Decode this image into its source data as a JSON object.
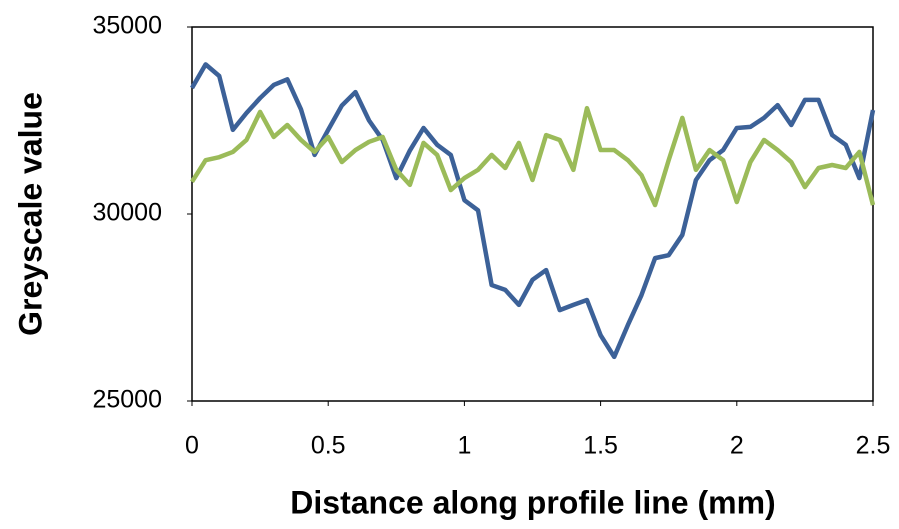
{
  "chart_data": {
    "type": "line",
    "x_label": "Distance along profile line (mm)",
    "y_label": "Greyscale value",
    "x": [
      0,
      0.05,
      0.1,
      0.15,
      0.2,
      0.25,
      0.3,
      0.35,
      0.4,
      0.45,
      0.5,
      0.55,
      0.6,
      0.65,
      0.7,
      0.75,
      0.8,
      0.85,
      0.9,
      0.95,
      1,
      1.05,
      1.1,
      1.15,
      1.2,
      1.25,
      1.3,
      1.35,
      1.4,
      1.45,
      1.5,
      1.55,
      1.6,
      1.65,
      1.7,
      1.75,
      1.8,
      1.85,
      1.9,
      1.95,
      2,
      2.05,
      2.1,
      2.15,
      2.2,
      2.25,
      2.3,
      2.35,
      2.4,
      2.45,
      2.5
    ],
    "series": [
      {
        "color": "#3c6198",
        "values": [
          33370,
          34000,
          33690,
          32250,
          32700,
          33100,
          33450,
          33600,
          32800,
          31580,
          32250,
          32900,
          33260,
          32500,
          31980,
          30960,
          31700,
          32300,
          31850,
          31580,
          30370,
          30100,
          28100,
          27970,
          27570,
          28240,
          28500,
          27430,
          27570,
          27700,
          26760,
          26180,
          27030,
          27830,
          28820,
          28900,
          29440,
          30910,
          31440,
          31710,
          32300,
          32330,
          32570,
          32910,
          32380,
          33050,
          33050,
          32110,
          31850,
          30960,
          32780
        ]
      },
      {
        "color": "#9bbb59",
        "values": [
          30860,
          31440,
          31520,
          31660,
          31980,
          32730,
          32060,
          32380,
          31980,
          31660,
          32060,
          31390,
          31710,
          31930,
          32060,
          31180,
          30780,
          31900,
          31580,
          30640,
          30960,
          31180,
          31580,
          31230,
          31900,
          30910,
          32110,
          31980,
          31180,
          32830,
          31710,
          31710,
          31440,
          31040,
          30240,
          31440,
          32570,
          31180,
          31710,
          31440,
          30320,
          31390,
          31980,
          31710,
          31390,
          30720,
          31230,
          31310,
          31230,
          31660,
          30240
        ]
      }
    ],
    "xlim": [
      0,
      2.5
    ],
    "xticks": [
      0,
      0.5,
      1,
      1.5,
      2,
      2.5
    ],
    "ylim": [
      25000,
      35000
    ],
    "yticks": [
      25000,
      30000,
      35000
    ],
    "grid": false
  }
}
